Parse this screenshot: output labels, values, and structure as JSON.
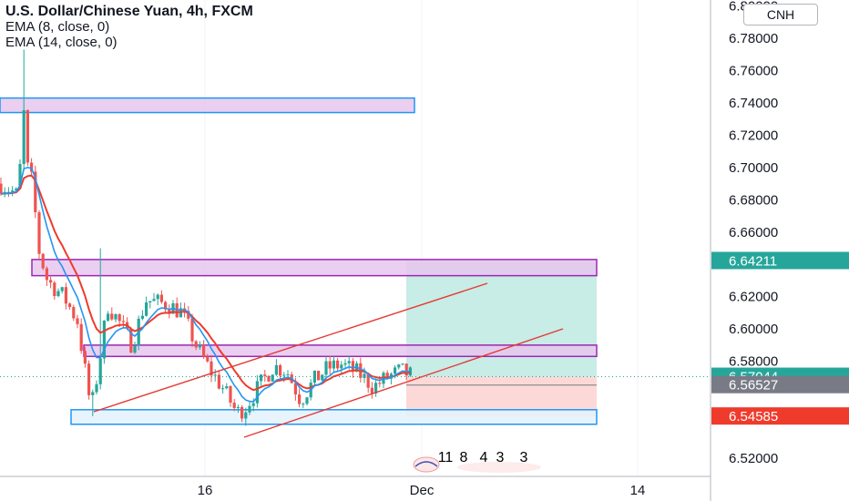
{
  "legend": {
    "title": "U.S. Dollar/Chinese Yuan, 4h, FXCM",
    "indicator_1": "EMA (8, close, 0)",
    "indicator_2": "EMA (14, close, 0)"
  },
  "symbol_badge": "CNH",
  "colors": {
    "up": "#26a69a",
    "down": "#ef5350",
    "ema_fast": "#2196f3",
    "ema_slow": "#ef3b2c",
    "channel": "#e53935",
    "box_purple_fill": "#e6c7ee",
    "box_purple_border": "#9c27b0",
    "box_blue_border": "#2196f3",
    "box_blue_fill": "#e3f2fd",
    "target_zone": "#c8ece6",
    "stop_zone": "#fcd9d6",
    "grid_dot": "#26a69a"
  },
  "chart_data": {
    "type": "candlestick",
    "title": "U.S. Dollar/Chinese Yuan, 4h, FXCM",
    "series": [
      {
        "name": "EMA (8, close, 0)"
      },
      {
        "name": "EMA (14, close, 0)"
      }
    ],
    "ylim": [
      6.51,
      6.8
    ],
    "y_ticks": [
      "6.52000",
      "6.58000",
      "6.60000",
      "6.62000",
      "6.66000",
      "6.68000",
      "6.70000",
      "6.72000",
      "6.74000",
      "6.76000",
      "6.78000",
      "6.80000"
    ],
    "x_ticks": [
      "16",
      "Dec",
      "14"
    ],
    "price_labels": [
      {
        "value": 6.64211,
        "text": "6.64211",
        "color": "#26a69a"
      },
      {
        "value": 6.57044,
        "text": "6.57044",
        "color": "#26a69a"
      },
      {
        "value": 6.56527,
        "text": "6.56527",
        "color": "#787b86"
      },
      {
        "value": 6.54585,
        "text": "6.54585",
        "color": "#ef3b2c"
      }
    ],
    "zones": [
      {
        "kind": "resistance",
        "low": 6.734,
        "high": 6.743
      },
      {
        "kind": "resistance",
        "low": 6.633,
        "high": 6.643
      },
      {
        "kind": "support",
        "low": 6.583,
        "high": 6.59
      },
      {
        "kind": "support",
        "low": 6.541,
        "high": 6.55
      }
    ],
    "position": {
      "entry": 6.57044,
      "target": 6.64211,
      "stop": 6.54585
    },
    "event_counts": [
      "11",
      "8",
      "4",
      "3",
      "3"
    ]
  }
}
